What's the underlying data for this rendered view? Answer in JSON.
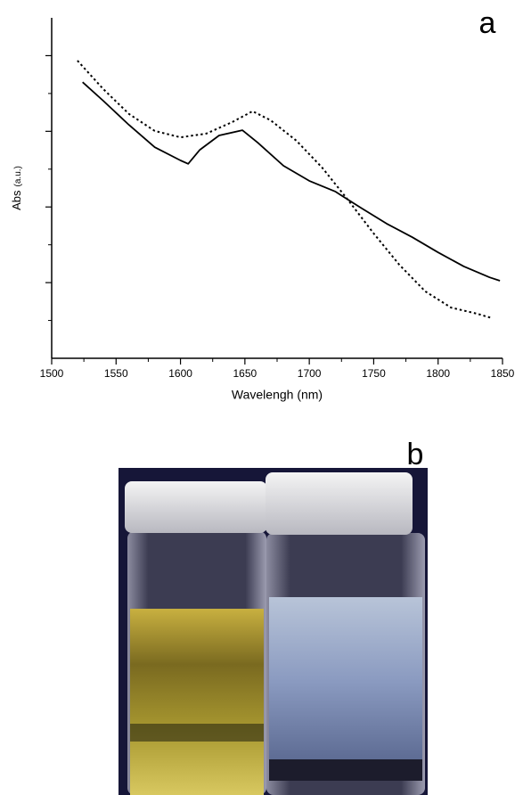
{
  "chart_data": {
    "type": "line",
    "panel_label": "a",
    "x_label": "Wavelengh (nm)",
    "y_label": "Abs",
    "y_label_unit": "(a.u.)",
    "xlim": [
      1500,
      1850
    ],
    "xticks": [
      1500,
      1550,
      1600,
      1650,
      1700,
      1750,
      1800,
      1850
    ],
    "xticks_minor": [
      1525,
      1575,
      1625,
      1675,
      1725,
      1775,
      1825
    ],
    "ylim": [
      0,
      9
    ],
    "yticks": [
      2,
      4,
      6,
      8
    ],
    "yticks_minor": [
      1,
      3,
      5,
      7
    ],
    "ytick_labels": false,
    "series": [
      {
        "color": "#000000",
        "dash": "solid",
        "x": [
          1524,
          1540,
          1560,
          1580,
          1600,
          1606,
          1615,
          1630,
          1648,
          1660,
          1680,
          1700,
          1720,
          1740,
          1760,
          1780,
          1800,
          1820,
          1840,
          1848
        ],
        "values": [
          7.3,
          6.81,
          6.17,
          5.58,
          5.23,
          5.14,
          5.51,
          5.89,
          6.03,
          5.7,
          5.09,
          4.69,
          4.41,
          3.98,
          3.56,
          3.2,
          2.8,
          2.43,
          2.14,
          2.05
        ]
      },
      {
        "color": "#000000",
        "dash": "dotted",
        "x": [
          1520,
          1540,
          1560,
          1580,
          1600,
          1620,
          1640,
          1656,
          1670,
          1690,
          1710,
          1730,
          1750,
          1770,
          1790,
          1810,
          1830,
          1842
        ],
        "values": [
          7.87,
          7.12,
          6.46,
          6.01,
          5.84,
          5.94,
          6.24,
          6.53,
          6.29,
          5.75,
          5.04,
          4.19,
          3.3,
          2.47,
          1.77,
          1.34,
          1.18,
          1.06
        ]
      }
    ]
  },
  "photo": {
    "panel_label": "b"
  }
}
